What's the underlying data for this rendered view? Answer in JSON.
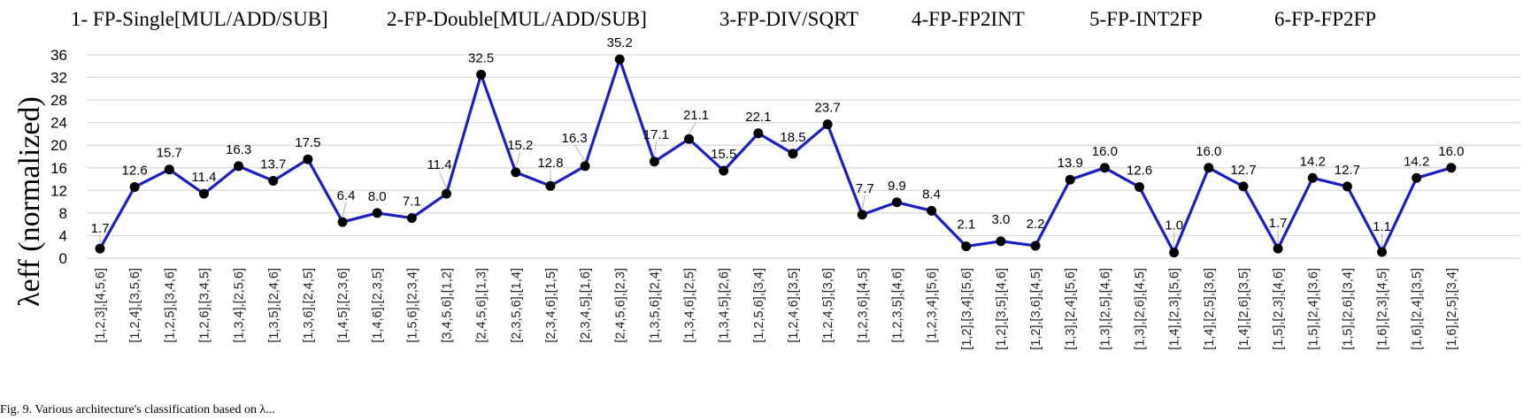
{
  "chart_data": {
    "type": "line",
    "ylabel": "λeff (normalized)",
    "ylim": [
      0,
      36
    ],
    "yticks": [
      0,
      4,
      8,
      12,
      16,
      20,
      24,
      28,
      32,
      36
    ],
    "grid": true,
    "groups": [
      "1- FP-Single[MUL/ADD/SUB]",
      "2-FP-Double[MUL/ADD/SUB]",
      "3-FP-DIV/SQRT",
      "4-FP-FP2INT",
      "5-FP-INT2FP",
      "6-FP-FP2FP"
    ],
    "categories": [
      "[1,2,3],[4,5,6]",
      "[1,2,4],[3,5,6]",
      "[1,2,5],[3,4,6]",
      "[1,2,6],[3,4,5]",
      "[1,3,4],[2,5,6]",
      "[1,3,5],[2,4,6]",
      "[1,3,6],[2,4,5]",
      "[1,4,5],[2,3,6]",
      "[1,4,6],[2,3,5]",
      "[1,5,6],[2,3,4]",
      "[3,4,5,6],[1,2]",
      "[2,4,5,6],[1,3]",
      "[2,3,5,6],[1,4]",
      "[2,3,4,6],[1,5]",
      "[2,3,4,5],[1,6]",
      "[2,4,5,6],[2,3]",
      "[1,3,5,6],[2,4]",
      "[1,3,4,6],[2,5]",
      "[1,3,4,5],[2,6]",
      "[1,2,5,6],[3,4]",
      "[1,2,4,6],[3,5]",
      "[1,2,4,5],[3,6]",
      "[1,2,3,6],[4,5]",
      "[1,2,3,5],[4,6]",
      "[1,2,3,4],[5,6]",
      "[1,2],[3,4],[5,6]",
      "[1,2],[3,5],[4,6]",
      "[1,2],[3,6],[4,5]",
      "[1,3],[2,4],[5,6]",
      "[1,3],[2,5],[4,6]",
      "[1,3],[2,6],[4,5]",
      "[1,4],[2,3],[5,6]",
      "[1,4],[2,5],[3,6]",
      "[1,4],[2,6],[3,5]",
      "[1,5],[2,3],[4,6]",
      "[1,5],[2,4],[3,6]",
      "[1,5],[2,6],[3,4]",
      "[1,6],[2,3],[4,5]",
      "[1,6],[2,4],[3,5]",
      "[1,6],[2,5],[3,4]"
    ],
    "values": [
      1.7,
      12.6,
      15.7,
      11.4,
      16.3,
      13.7,
      17.5,
      6.4,
      8.0,
      7.1,
      11.4,
      32.5,
      15.2,
      12.8,
      16.3,
      35.2,
      17.1,
      21.1,
      15.5,
      22.1,
      18.5,
      23.7,
      7.7,
      9.9,
      8.4,
      2.1,
      3.0,
      2.2,
      13.9,
      16.0,
      12.6,
      1.0,
      16.0,
      12.7,
      1.7,
      14.2,
      12.7,
      1.1,
      14.2,
      16.0
    ],
    "data_labels": [
      "1.7",
      "12.6",
      "15.7",
      "11.4",
      "16.3",
      "13.7",
      "17.5",
      "6.4",
      "8.0",
      "7.1",
      "11.4",
      "32.5",
      "15.2",
      "12.8",
      "16.3",
      "35.2",
      "17.1",
      "21.1",
      "15.5",
      "22.1",
      "18.5",
      "23.7",
      "7.7",
      "9.9",
      "8.4",
      "2.1",
      "3.0",
      "2.2",
      "13.9",
      "16.0",
      "12.6",
      "1.0",
      "16.0",
      "12.7",
      "1.7",
      "14.2",
      "12.7",
      "1.1",
      "14.2",
      "16.0"
    ],
    "colors": {
      "line": "#1a1fc4",
      "marker": "#000000",
      "grid": "#d9d9d9"
    }
  },
  "caption": "Fig. 9.  Various architecture's classification based on λ..."
}
